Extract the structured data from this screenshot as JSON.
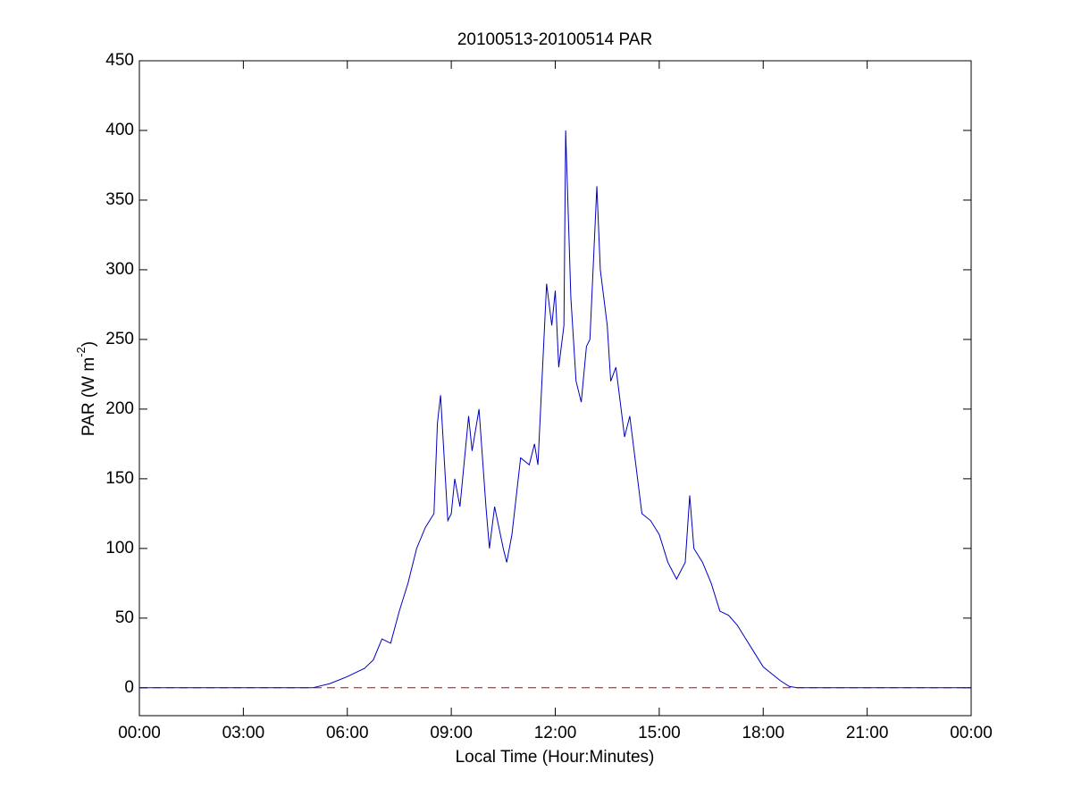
{
  "chart_data": {
    "type": "line",
    "title": "20100513-20100514 PAR",
    "xlabel": "Local Time (Hour:Minutes)",
    "ylabel": [
      "PAR (W m",
      "-2",
      ")"
    ],
    "xlim": [
      0,
      24
    ],
    "xticks": [
      {
        "value": 0,
        "label": "00:00"
      },
      {
        "value": 3,
        "label": "03:00"
      },
      {
        "value": 6,
        "label": "06:00"
      },
      {
        "value": 9,
        "label": "09:00"
      },
      {
        "value": 12,
        "label": "12:00"
      },
      {
        "value": 15,
        "label": "15:00"
      },
      {
        "value": 18,
        "label": "18:00"
      },
      {
        "value": 21,
        "label": "21:00"
      },
      {
        "value": 24,
        "label": "00:00"
      }
    ],
    "ylim": [
      -20,
      450
    ],
    "yticks": [
      0,
      50,
      100,
      150,
      200,
      250,
      300,
      350,
      400,
      450
    ],
    "reference_line": {
      "value": 0,
      "color": "#c00000",
      "style": "dashed"
    },
    "series": [
      {
        "name": "PAR",
        "color": "#0000c0",
        "x": [
          0,
          5,
          5.5,
          6,
          6.5,
          6.75,
          7,
          7.25,
          7.5,
          7.75,
          8,
          8.25,
          8.5,
          8.6,
          8.69,
          8.9,
          9,
          9.1,
          9.25,
          9.5,
          9.6,
          9.8,
          10,
          10.1,
          10.25,
          10.5,
          10.6,
          10.75,
          11,
          11.25,
          11.4,
          11.5,
          11.75,
          11.9,
          12,
          12.1,
          12.25,
          12.3,
          12.45,
          12.6,
          12.75,
          12.9,
          13,
          13.2,
          13.3,
          13.5,
          13.6,
          13.75,
          14,
          14.15,
          14.3,
          14.5,
          14.75,
          15,
          15.25,
          15.5,
          15.75,
          15.88,
          16,
          16.25,
          16.5,
          16.75,
          17,
          17.25,
          17.5,
          17.75,
          18,
          18.25,
          18.5,
          18.75,
          19,
          24
        ],
        "values": [
          0,
          0,
          3,
          8,
          14,
          20,
          35,
          32,
          55,
          75,
          100,
          115,
          125,
          190,
          210,
          120,
          125,
          150,
          130,
          195,
          170,
          200,
          130,
          100,
          130,
          100,
          90,
          110,
          165,
          160,
          175,
          160,
          290,
          260,
          285,
          230,
          260,
          400,
          280,
          220,
          205,
          245,
          250,
          360,
          300,
          260,
          220,
          230,
          180,
          195,
          165,
          125,
          120,
          110,
          90,
          78,
          90,
          138,
          100,
          90,
          75,
          55,
          52,
          45,
          35,
          25,
          15,
          10,
          5,
          1,
          0,
          0
        ]
      }
    ]
  }
}
